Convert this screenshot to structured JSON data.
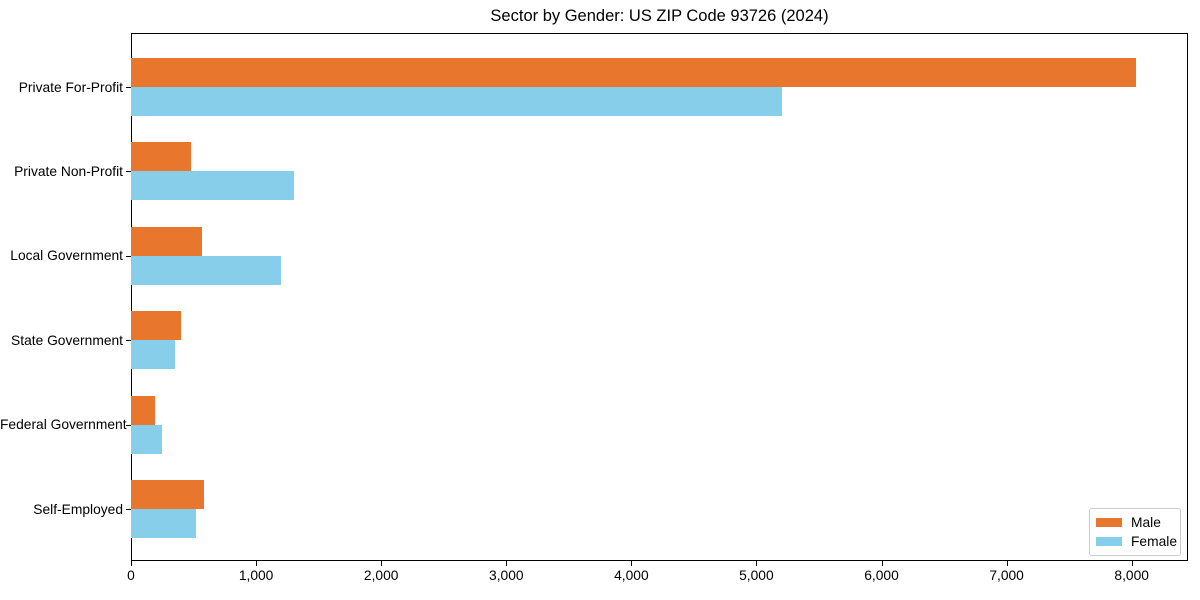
{
  "chart_data": {
    "type": "bar",
    "orientation": "horizontal",
    "title": "Sector by Gender: US ZIP Code 93726 (2024)",
    "categories": [
      "Private For-Profit",
      "Private Non-Profit",
      "Local Government",
      "State Government",
      "Federal Government",
      "Self-Employed"
    ],
    "series": [
      {
        "name": "Male",
        "color": "#e8762d",
        "values": [
          8030,
          480,
          570,
          400,
          190,
          580
        ]
      },
      {
        "name": "Female",
        "color": "#87ceeb",
        "values": [
          5200,
          1300,
          1200,
          350,
          250,
          520
        ]
      }
    ],
    "xlabel": "",
    "ylabel": "",
    "xlim": [
      0,
      8450
    ],
    "x_ticks": [
      0,
      1000,
      2000,
      3000,
      4000,
      5000,
      6000,
      7000,
      8000
    ],
    "x_tick_labels": [
      "0",
      "1,000",
      "2,000",
      "3,000",
      "4,000",
      "5,000",
      "6,000",
      "7,000",
      "8,000"
    ],
    "legend": {
      "position": "lower right",
      "entries": [
        "Male",
        "Female"
      ]
    },
    "grid": false,
    "background_color": "#ffffff",
    "spine_color": "#000000"
  }
}
